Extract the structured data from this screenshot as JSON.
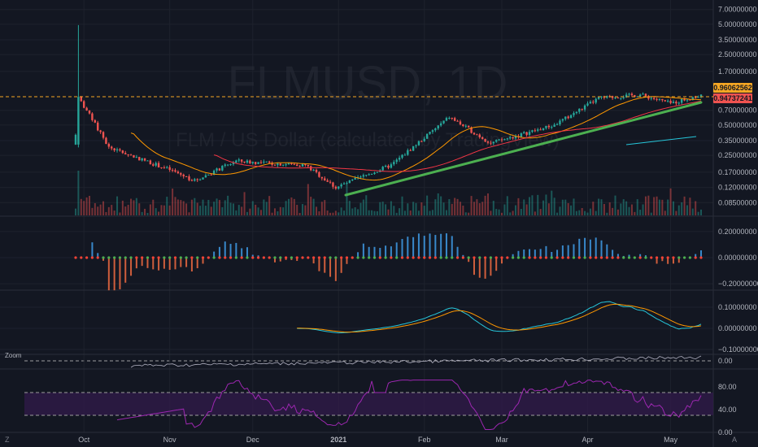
{
  "watermark": {
    "symbol": "FLMUSD, 1D",
    "description": "FLM / US Dollar (calculated by TradingView)"
  },
  "colors": {
    "background": "#131722",
    "grid": "#1e222d",
    "up": "#26a69a",
    "down": "#ef5350",
    "trendline": "#4caf50",
    "ma_fast": "#ff9800",
    "ma_mid": "#f23645",
    "ma_slow": "#26c6da",
    "macd_line": "#26c6da",
    "signal_line": "#ff9800",
    "rsi": "#9c27b0",
    "rsi_band": "#311b4b",
    "price_badge": "#f5a623",
    "price_badge2": "#ef5350"
  },
  "price_badges": {
    "current": "0.96062562",
    "second": "0.94737241"
  },
  "chart_data": [
    {
      "type": "candlestick",
      "name": "price",
      "scale": "log",
      "yticks": [
        "7.00000000",
        "5.00000000",
        "3.50000000",
        "2.50000000",
        "1.70000000",
        "0.70000000",
        "0.50000000",
        "0.35000000",
        "0.25000000",
        "0.17000000",
        "0.12000000",
        "0.08500000"
      ],
      "ylim": [
        0.075,
        7.5
      ],
      "x_labels": [
        "Oct",
        "Nov",
        "Dec",
        "2021",
        "Feb",
        "Mar",
        "Apr",
        "May"
      ],
      "key_points": [
        {
          "date": "Sep 28",
          "price": 0.4
        },
        {
          "date": "Sep 29",
          "price": 0.95
        },
        {
          "date": "Oct 10",
          "price": 0.3
        },
        {
          "date": "Nov 1",
          "price": 0.18
        },
        {
          "date": "Nov 10",
          "price": 0.14
        },
        {
          "date": "Nov 25",
          "price": 0.22
        },
        {
          "date": "Dec 5",
          "price": 0.21
        },
        {
          "date": "Dec 20",
          "price": 0.2
        },
        {
          "date": "Dec 31",
          "price": 0.12
        },
        {
          "date": "Jan 20",
          "price": 0.2
        },
        {
          "date": "Feb 10",
          "price": 0.6
        },
        {
          "date": "Feb 25",
          "price": 0.33
        },
        {
          "date": "Mar 20",
          "price": 0.5
        },
        {
          "date": "Apr 5",
          "price": 0.92
        },
        {
          "date": "Apr 20",
          "price": 1.0
        },
        {
          "date": "May 1",
          "price": 0.82
        },
        {
          "date": "May 10",
          "price": 0.96
        }
      ],
      "horizontal_level": 0.95
    },
    {
      "type": "histogram",
      "name": "oscillator",
      "yticks": [
        "0.20000000",
        "0.00000000",
        "−0.20000000"
      ],
      "ylim": [
        -0.28,
        0.28
      ]
    },
    {
      "type": "line",
      "name": "macd",
      "yticks": [
        "0.10000000",
        "0.00000000",
        "−0.10000000"
      ],
      "ylim": [
        -0.1,
        0.15
      ]
    },
    {
      "type": "line",
      "name": "zoom",
      "yticks": [
        "0.00"
      ]
    },
    {
      "type": "line",
      "name": "rsi",
      "yticks": [
        "80.00",
        "40.00",
        "0.00"
      ],
      "ylim": [
        0,
        100
      ],
      "bands": [
        70,
        30
      ]
    }
  ],
  "pane_label_zoom": "Zoom",
  "bottom": {
    "left_icon": "Z",
    "right_icon": "A"
  }
}
